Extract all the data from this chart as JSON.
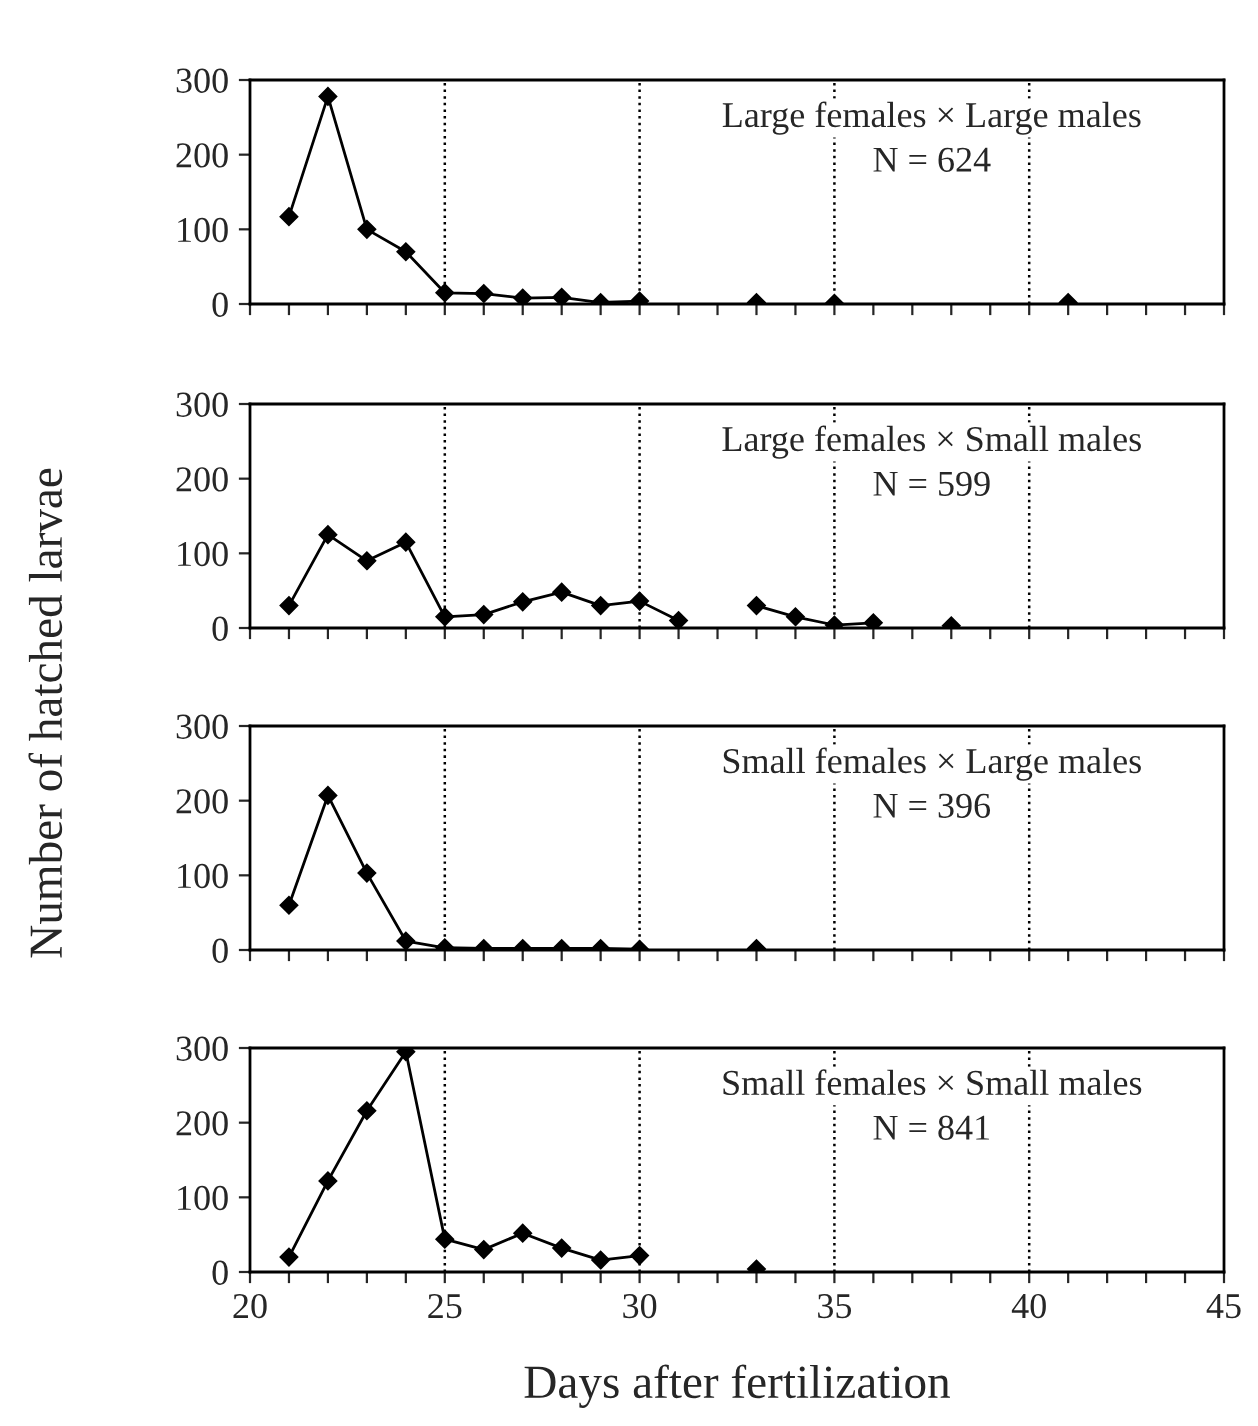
{
  "chart_data": [
    {
      "type": "line",
      "ylabel": "Number of hatched larvae",
      "annotations": [
        "Large females × Large males",
        "N = 624"
      ],
      "x": [
        21,
        22,
        23,
        24,
        25,
        26,
        27,
        28,
        29,
        30,
        31,
        32,
        33,
        34,
        35,
        36,
        37,
        38,
        39,
        40,
        41
      ],
      "series": [
        {
          "color": "#000000",
          "values": [
            117,
            278,
            100,
            70,
            15,
            14,
            8,
            9,
            2,
            4,
            null,
            null,
            2,
            null,
            1,
            null,
            null,
            null,
            null,
            null,
            2
          ]
        }
      ],
      "xlim": [
        20,
        45
      ],
      "xticks": [
        {
          "value": 20,
          "label": null
        },
        {
          "value": 21,
          "label": null
        },
        {
          "value": 22,
          "label": null
        },
        {
          "value": 23,
          "label": null
        },
        {
          "value": 24,
          "label": null
        },
        {
          "value": 25,
          "label": null
        },
        {
          "value": 26,
          "label": null
        },
        {
          "value": 27,
          "label": null
        },
        {
          "value": 28,
          "label": null
        },
        {
          "value": 29,
          "label": null
        },
        {
          "value": 30,
          "label": null
        },
        {
          "value": 31,
          "label": null
        },
        {
          "value": 32,
          "label": null
        },
        {
          "value": 33,
          "label": null
        },
        {
          "value": 34,
          "label": null
        },
        {
          "value": 35,
          "label": null
        },
        {
          "value": 36,
          "label": null
        },
        {
          "value": 37,
          "label": null
        },
        {
          "value": 38,
          "label": null
        },
        {
          "value": 39,
          "label": null
        },
        {
          "value": 40,
          "label": null
        },
        {
          "value": 41,
          "label": null
        },
        {
          "value": 42,
          "label": null
        },
        {
          "value": 43,
          "label": null
        },
        {
          "value": 44,
          "label": null
        },
        {
          "value": 45,
          "label": null
        }
      ],
      "ylim": [
        0,
        300
      ],
      "yticks": [
        0,
        100,
        200,
        300
      ],
      "tick_labels": "y",
      "marker": "diamond",
      "line_style": "solid",
      "ref_lines": [
        {
          "axis": "x",
          "value": 25,
          "line_style": "dotted",
          "color": "#000000"
        },
        {
          "axis": "x",
          "value": 30,
          "line_style": "dotted",
          "color": "#000000"
        },
        {
          "axis": "x",
          "value": 35,
          "line_style": "dotted",
          "color": "#000000"
        },
        {
          "axis": "x",
          "value": 40,
          "line_style": "dotted",
          "color": "#000000"
        }
      ]
    },
    {
      "type": "line",
      "annotations": [
        "Large females × Small males",
        "N = 599"
      ],
      "x": [
        21,
        22,
        23,
        24,
        25,
        26,
        27,
        28,
        29,
        30,
        31,
        32,
        33,
        34,
        35,
        36,
        37,
        38
      ],
      "series": [
        {
          "color": "#000000",
          "values": [
            30,
            125,
            90,
            115,
            15,
            18,
            35,
            48,
            30,
            36,
            10,
            null,
            30,
            15,
            4,
            7,
            null,
            3
          ]
        }
      ],
      "xlim": [
        20,
        45
      ],
      "xticks": [
        {
          "value": 20,
          "label": null
        },
        {
          "value": 21,
          "label": null
        },
        {
          "value": 22,
          "label": null
        },
        {
          "value": 23,
          "label": null
        },
        {
          "value": 24,
          "label": null
        },
        {
          "value": 25,
          "label": null
        },
        {
          "value": 26,
          "label": null
        },
        {
          "value": 27,
          "label": null
        },
        {
          "value": 28,
          "label": null
        },
        {
          "value": 29,
          "label": null
        },
        {
          "value": 30,
          "label": null
        },
        {
          "value": 31,
          "label": null
        },
        {
          "value": 32,
          "label": null
        },
        {
          "value": 33,
          "label": null
        },
        {
          "value": 34,
          "label": null
        },
        {
          "value": 35,
          "label": null
        },
        {
          "value": 36,
          "label": null
        },
        {
          "value": 37,
          "label": null
        },
        {
          "value": 38,
          "label": null
        },
        {
          "value": 39,
          "label": null
        },
        {
          "value": 40,
          "label": null
        },
        {
          "value": 41,
          "label": null
        },
        {
          "value": 42,
          "label": null
        },
        {
          "value": 43,
          "label": null
        },
        {
          "value": 44,
          "label": null
        },
        {
          "value": 45,
          "label": null
        }
      ],
      "ylim": [
        0,
        300
      ],
      "yticks": [
        0,
        100,
        200,
        300
      ],
      "tick_labels": "y",
      "marker": "diamond",
      "line_style": "solid",
      "ref_lines": [
        {
          "axis": "x",
          "value": 25,
          "line_style": "dotted",
          "color": "#000000"
        },
        {
          "axis": "x",
          "value": 30,
          "line_style": "dotted",
          "color": "#000000"
        },
        {
          "axis": "x",
          "value": 35,
          "line_style": "dotted",
          "color": "#000000"
        },
        {
          "axis": "x",
          "value": 40,
          "line_style": "dotted",
          "color": "#000000"
        }
      ]
    },
    {
      "type": "line",
      "annotations": [
        "Small females × Large males",
        "N = 396"
      ],
      "x": [
        21,
        22,
        23,
        24,
        25,
        26,
        27,
        28,
        29,
        30,
        31,
        32,
        33
      ],
      "series": [
        {
          "color": "#000000",
          "values": [
            60,
            207,
            103,
            12,
            3,
            2,
            2,
            2,
            2,
            1,
            null,
            null,
            2
          ]
        }
      ],
      "xlim": [
        20,
        45
      ],
      "xticks": [
        {
          "value": 20,
          "label": null
        },
        {
          "value": 21,
          "label": null
        },
        {
          "value": 22,
          "label": null
        },
        {
          "value": 23,
          "label": null
        },
        {
          "value": 24,
          "label": null
        },
        {
          "value": 25,
          "label": null
        },
        {
          "value": 26,
          "label": null
        },
        {
          "value": 27,
          "label": null
        },
        {
          "value": 28,
          "label": null
        },
        {
          "value": 29,
          "label": null
        },
        {
          "value": 30,
          "label": null
        },
        {
          "value": 31,
          "label": null
        },
        {
          "value": 32,
          "label": null
        },
        {
          "value": 33,
          "label": null
        },
        {
          "value": 34,
          "label": null
        },
        {
          "value": 35,
          "label": null
        },
        {
          "value": 36,
          "label": null
        },
        {
          "value": 37,
          "label": null
        },
        {
          "value": 38,
          "label": null
        },
        {
          "value": 39,
          "label": null
        },
        {
          "value": 40,
          "label": null
        },
        {
          "value": 41,
          "label": null
        },
        {
          "value": 42,
          "label": null
        },
        {
          "value": 43,
          "label": null
        },
        {
          "value": 44,
          "label": null
        },
        {
          "value": 45,
          "label": null
        }
      ],
      "ylim": [
        0,
        300
      ],
      "yticks": [
        0,
        100,
        200,
        300
      ],
      "tick_labels": "y",
      "marker": "diamond",
      "line_style": "solid",
      "ref_lines": [
        {
          "axis": "x",
          "value": 25,
          "line_style": "dotted",
          "color": "#000000"
        },
        {
          "axis": "x",
          "value": 30,
          "line_style": "dotted",
          "color": "#000000"
        },
        {
          "axis": "x",
          "value": 35,
          "line_style": "dotted",
          "color": "#000000"
        },
        {
          "axis": "x",
          "value": 40,
          "line_style": "dotted",
          "color": "#000000"
        }
      ]
    },
    {
      "type": "line",
      "xlabel": "Days after fertilization",
      "annotations": [
        "Small females × Small males",
        "N = 841"
      ],
      "x": [
        21,
        22,
        23,
        24,
        25,
        26,
        27,
        28,
        29,
        30,
        31,
        32,
        33
      ],
      "series": [
        {
          "color": "#000000",
          "values": [
            20,
            122,
            216,
            295,
            44,
            30,
            52,
            32,
            16,
            22,
            null,
            null,
            4
          ]
        }
      ],
      "xlim": [
        20,
        45
      ],
      "xticks": [
        {
          "value": 20,
          "label": "20"
        },
        {
          "value": 21,
          "label": null
        },
        {
          "value": 22,
          "label": null
        },
        {
          "value": 23,
          "label": null
        },
        {
          "value": 24,
          "label": null
        },
        {
          "value": 25,
          "label": "25"
        },
        {
          "value": 26,
          "label": null
        },
        {
          "value": 27,
          "label": null
        },
        {
          "value": 28,
          "label": null
        },
        {
          "value": 29,
          "label": null
        },
        {
          "value": 30,
          "label": "30"
        },
        {
          "value": 31,
          "label": null
        },
        {
          "value": 32,
          "label": null
        },
        {
          "value": 33,
          "label": null
        },
        {
          "value": 34,
          "label": null
        },
        {
          "value": 35,
          "label": "35"
        },
        {
          "value": 36,
          "label": null
        },
        {
          "value": 37,
          "label": null
        },
        {
          "value": 38,
          "label": null
        },
        {
          "value": 39,
          "label": null
        },
        {
          "value": 40,
          "label": "40"
        },
        {
          "value": 41,
          "label": null
        },
        {
          "value": 42,
          "label": null
        },
        {
          "value": 43,
          "label": null
        },
        {
          "value": 44,
          "label": null
        },
        {
          "value": 45,
          "label": "45"
        }
      ],
      "ylim": [
        0,
        300
      ],
      "yticks": [
        0,
        100,
        200,
        300
      ],
      "marker": "diamond",
      "line_style": "solid",
      "ref_lines": [
        {
          "axis": "x",
          "value": 25,
          "line_style": "dotted",
          "color": "#000000"
        },
        {
          "axis": "x",
          "value": 30,
          "line_style": "dotted",
          "color": "#000000"
        },
        {
          "axis": "x",
          "value": 35,
          "line_style": "dotted",
          "color": "#000000"
        },
        {
          "axis": "x",
          "value": 40,
          "line_style": "dotted",
          "color": "#000000"
        }
      ]
    }
  ]
}
